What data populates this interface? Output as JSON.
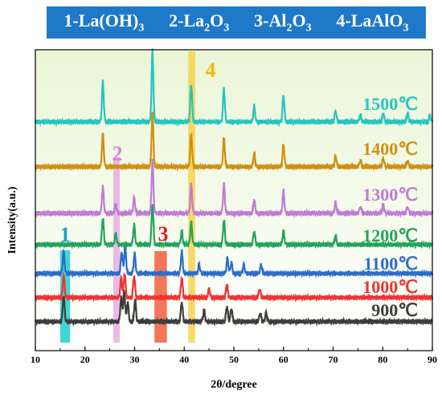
{
  "legend": {
    "items": [
      {
        "num": "1",
        "formula": [
          "La(OH)",
          "3",
          ""
        ]
      },
      {
        "num": "2",
        "formula": [
          "La",
          "2",
          "O",
          "3"
        ]
      },
      {
        "num": "3",
        "formula": [
          "Al",
          "2",
          "O",
          "3"
        ]
      },
      {
        "num": "4",
        "formula": [
          "LaAlO",
          "3",
          ""
        ]
      }
    ]
  },
  "chart_data": {
    "type": "line",
    "xlabel": "2θ/degree",
    "ylabel": "Intensity(a.u.)",
    "xlim": [
      10,
      90
    ],
    "xticks": [
      10,
      20,
      30,
      40,
      50,
      60,
      70,
      80,
      90
    ],
    "background_gradient": [
      "#eaf6d6",
      "#ffffff"
    ],
    "bands": [
      {
        "label": "1",
        "x0": 15,
        "x1": 17,
        "color": "#00c8c8",
        "label_color": "#1aa3c8"
      },
      {
        "label": "2",
        "x0": 25.7,
        "x1": 27,
        "color": "#e6a3e0",
        "label_color": "#e07fe0"
      },
      {
        "label": "3",
        "x0": 34,
        "x1": 36.5,
        "color": "#f04a24",
        "label_color": "#e02020"
      },
      {
        "label": "4",
        "x0": 40.8,
        "x1": 42.2,
        "color": "#f5cc3a",
        "label_color": "#f5b800"
      }
    ],
    "series": [
      {
        "name": "900℃",
        "color": "#3d3d3d",
        "peaks": [
          [
            15.7,
            0.6
          ],
          [
            27.3,
            0.55
          ],
          [
            27.9,
            0.7
          ],
          [
            28.6,
            0.45
          ],
          [
            30.1,
            0.5
          ],
          [
            39.5,
            0.45
          ],
          [
            44.0,
            0.25
          ],
          [
            48.6,
            0.35
          ],
          [
            49.5,
            0.3
          ],
          [
            55.3,
            0.2
          ],
          [
            56.5,
            0.2
          ]
        ]
      },
      {
        "name": "1000℃",
        "color": "#ee3333",
        "peaks": [
          [
            15.7,
            0.5
          ],
          [
            27.3,
            0.45
          ],
          [
            28.0,
            0.55
          ],
          [
            29.9,
            0.5
          ],
          [
            39.5,
            0.45
          ],
          [
            45.0,
            0.2
          ],
          [
            48.6,
            0.3
          ],
          [
            55.2,
            0.2
          ]
        ]
      },
      {
        "name": "1100℃",
        "color": "#2d6cc9",
        "peaks": [
          [
            15.7,
            0.5
          ],
          [
            27.4,
            0.5
          ],
          [
            28.1,
            0.65
          ],
          [
            30.0,
            0.45
          ],
          [
            39.5,
            0.5
          ],
          [
            43.0,
            0.2
          ],
          [
            48.7,
            0.35
          ],
          [
            49.5,
            0.25
          ],
          [
            52.0,
            0.2
          ],
          [
            55.5,
            0.2
          ]
        ]
      },
      {
        "name": "1200℃",
        "color": "#22a45a",
        "peaks": [
          [
            23.6,
            0.6
          ],
          [
            26.2,
            0.25
          ],
          [
            29.9,
            0.45
          ],
          [
            33.6,
            0.95
          ],
          [
            39.5,
            0.3
          ],
          [
            41.4,
            0.5
          ],
          [
            48.0,
            0.55
          ],
          [
            54.1,
            0.3
          ],
          [
            60.0,
            0.3
          ],
          [
            70.5,
            0.2
          ]
        ]
      },
      {
        "name": "1300℃",
        "color": "#c07bd6",
        "peaks": [
          [
            23.6,
            0.6
          ],
          [
            26.2,
            0.2
          ],
          [
            29.9,
            0.35
          ],
          [
            33.6,
            1.2
          ],
          [
            41.4,
            0.65
          ],
          [
            48.0,
            0.65
          ],
          [
            54.1,
            0.3
          ],
          [
            60.0,
            0.5
          ],
          [
            70.5,
            0.25
          ],
          [
            75.5,
            0.15
          ],
          [
            80.1,
            0.2
          ],
          [
            85.0,
            0.15
          ]
        ]
      },
      {
        "name": "1400℃",
        "color": "#d09010",
        "peaks": [
          [
            23.6,
            0.75
          ],
          [
            33.6,
            1.25
          ],
          [
            41.4,
            0.75
          ],
          [
            48.0,
            0.65
          ],
          [
            54.1,
            0.3
          ],
          [
            60.0,
            0.5
          ],
          [
            70.5,
            0.25
          ],
          [
            75.5,
            0.15
          ],
          [
            80.1,
            0.2
          ],
          [
            85.0,
            0.15
          ]
        ]
      },
      {
        "name": "1500℃",
        "color": "#26c4c0",
        "peaks": [
          [
            23.6,
            0.9
          ],
          [
            33.6,
            1.6
          ],
          [
            41.4,
            0.85
          ],
          [
            48.0,
            0.75
          ],
          [
            54.1,
            0.35
          ],
          [
            60.0,
            0.6
          ],
          [
            70.5,
            0.25
          ],
          [
            75.5,
            0.15
          ],
          [
            80.1,
            0.2
          ],
          [
            85.0,
            0.2
          ],
          [
            89.5,
            0.15
          ]
        ]
      }
    ]
  }
}
